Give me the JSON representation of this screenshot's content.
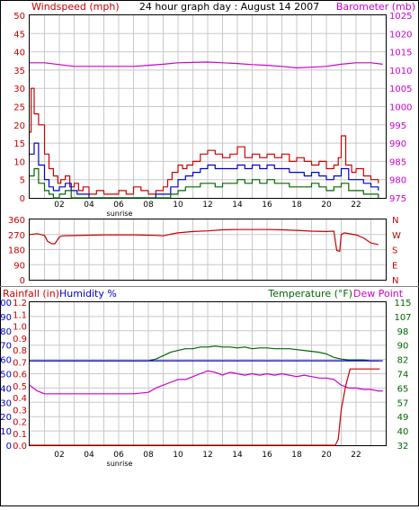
{
  "page": {
    "title": "24 hour graph day : August 14 2007"
  },
  "colors": {
    "red": "#cc0000",
    "blue": "#0000cc",
    "green": "#006600",
    "magenta": "#cc00cc",
    "axis_left_top": "#cc0000",
    "axis_left_bottom": "#0000cc",
    "grid": "#c8c8c8",
    "border": "#000000"
  },
  "chart_data": [
    {
      "id": "wind-baro",
      "type": "line",
      "title": "24 hour graph day : August 14 2007",
      "left_axis_label": "Windspeed (mph)",
      "right_axis_label": "Barometer (mb)",
      "x_ticks": [
        "02",
        "04",
        "06",
        "08",
        "10",
        "12",
        "14",
        "16",
        "18",
        "20",
        "22"
      ],
      "x_range": [
        0,
        24
      ],
      "x_annotation": "sunrise",
      "ylim_left": [
        0,
        50
      ],
      "ylim_right": [
        975,
        1025
      ],
      "y_ticks_left": [
        "0",
        "5",
        "10",
        "15",
        "20",
        "25",
        "30",
        "35",
        "40",
        "45",
        "50"
      ],
      "y_ticks_right": [
        "975",
        "980",
        "985",
        "990",
        "995",
        "1000",
        "1005",
        "1010",
        "1015",
        "1020",
        "1025"
      ],
      "series": [
        {
          "role": "gust",
          "color": "#cc0000",
          "axis": "left",
          "x": [
            0,
            0.1,
            0.3,
            0.6,
            1.0,
            1.3,
            1.6,
            1.9,
            2.1,
            2.4,
            2.7,
            3.0,
            3.3,
            3.6,
            4.0,
            4.5,
            5.0,
            5.5,
            6.0,
            6.5,
            7.0,
            7.5,
            8.0,
            8.5,
            9.0,
            9.3,
            9.6,
            10.0,
            10.3,
            10.6,
            11.0,
            11.5,
            12.0,
            12.5,
            13.0,
            13.5,
            14.0,
            14.5,
            15.0,
            15.5,
            16.0,
            16.5,
            17.0,
            17.5,
            18.0,
            18.5,
            19.0,
            19.5,
            20.0,
            20.5,
            20.8,
            21.0,
            21.3,
            21.7,
            22.0,
            22.5,
            23.0,
            23.5
          ],
          "y": [
            18,
            30,
            23,
            20,
            12,
            8,
            6,
            4,
            5,
            6,
            3,
            4,
            2,
            3,
            1,
            2,
            1,
            1,
            2,
            1,
            3,
            2,
            1,
            2,
            3,
            5,
            7,
            9,
            8,
            9,
            10,
            12,
            13,
            12,
            11,
            12,
            14,
            11,
            12,
            11,
            12,
            11,
            12,
            10,
            11,
            10,
            9,
            10,
            8,
            9,
            11,
            17,
            9,
            7,
            8,
            6,
            5,
            4
          ]
        },
        {
          "role": "average",
          "color": "#0000cc",
          "axis": "left",
          "x": [
            0,
            0.3,
            0.6,
            1.0,
            1.3,
            1.6,
            2.0,
            2.4,
            2.8,
            3.2,
            3.6,
            4.0,
            4.5,
            5.0,
            6.0,
            7.0,
            8.0,
            8.5,
            9.0,
            9.5,
            10.0,
            10.5,
            11.0,
            11.5,
            12.0,
            12.5,
            13.0,
            13.5,
            14.0,
            14.5,
            15.0,
            15.5,
            16.0,
            16.5,
            17.0,
            17.5,
            18.0,
            18.5,
            19.0,
            19.5,
            20.0,
            20.5,
            21.0,
            21.5,
            22.0,
            22.5,
            23.0,
            23.5
          ],
          "y": [
            12,
            15,
            9,
            5,
            3,
            2,
            3,
            4,
            2,
            1,
            1,
            0,
            0,
            0,
            0,
            0,
            0,
            1,
            1,
            3,
            5,
            6,
            7,
            8,
            9,
            8,
            8,
            8,
            9,
            8,
            9,
            8,
            9,
            8,
            8,
            7,
            7,
            6,
            7,
            6,
            5,
            6,
            8,
            5,
            5,
            4,
            3,
            2
          ]
        },
        {
          "role": "lull",
          "color": "#006600",
          "axis": "left",
          "x": [
            0,
            0.3,
            0.6,
            1.0,
            1.3,
            1.6,
            2.0,
            2.4,
            2.8,
            3.2,
            3.6,
            4.0,
            5.0,
            6.0,
            7.0,
            8.0,
            8.5,
            9.0,
            9.5,
            10.0,
            10.5,
            11.0,
            11.5,
            12.0,
            12.5,
            13.0,
            13.5,
            14.0,
            14.5,
            15.0,
            15.5,
            16.0,
            16.5,
            17.0,
            17.5,
            18.0,
            18.5,
            19.0,
            19.5,
            20.0,
            20.5,
            21.0,
            21.5,
            22.0,
            22.5,
            23.0,
            23.5
          ],
          "y": [
            6,
            8,
            4,
            2,
            1,
            0,
            1,
            2,
            0,
            0,
            0,
            0,
            0,
            0,
            0,
            0,
            0,
            0,
            1,
            2,
            3,
            3,
            4,
            4,
            3,
            4,
            4,
            5,
            4,
            5,
            4,
            5,
            4,
            4,
            3,
            3,
            3,
            4,
            3,
            2,
            3,
            4,
            2,
            2,
            1,
            1,
            0
          ]
        },
        {
          "role": "barometer",
          "color": "#cc00cc",
          "axis": "right",
          "x": [
            0,
            1,
            2,
            3,
            4,
            5,
            6,
            7,
            8,
            9,
            10,
            11,
            12,
            13,
            14,
            15,
            16,
            17,
            18,
            19,
            20,
            21,
            22,
            23,
            23.8
          ],
          "y": [
            1012,
            1012,
            1011.5,
            1011,
            1011,
            1011,
            1011,
            1011,
            1011.3,
            1011.6,
            1012,
            1012.1,
            1012.2,
            1012,
            1011.8,
            1011.5,
            1011.3,
            1011,
            1010.6,
            1010.8,
            1011,
            1011.6,
            1012,
            1012,
            1011.6
          ]
        }
      ]
    },
    {
      "id": "wind-direction",
      "type": "line",
      "x_ticks": [],
      "x_range": [
        0,
        24
      ],
      "ylim_left": [
        0,
        360
      ],
      "y_ticks_left": [
        "0",
        "90",
        "180",
        "270",
        "360"
      ],
      "y_ticks_right": [
        "N",
        "E",
        "S",
        "W",
        "N"
      ],
      "series": [
        {
          "role": "direction",
          "color": "#cc0000",
          "axis": "left",
          "x": [
            0,
            0.5,
            1.0,
            1.2,
            1.5,
            1.7,
            2.0,
            2.2,
            3.0,
            4.0,
            5.0,
            6.0,
            7.0,
            8.0,
            8.5,
            9.0,
            9.5,
            10.0,
            11.0,
            12.0,
            13.0,
            14.0,
            15.0,
            16.0,
            17.0,
            18.0,
            19.0,
            20.0,
            20.5,
            20.7,
            20.9,
            21.0,
            21.2,
            22.0,
            22.5,
            23.0,
            23.5
          ],
          "y": [
            270,
            275,
            265,
            230,
            215,
            215,
            255,
            262,
            264,
            266,
            268,
            268,
            268,
            266,
            265,
            262,
            272,
            280,
            288,
            292,
            298,
            300,
            300,
            300,
            298,
            295,
            290,
            288,
            290,
            175,
            170,
            270,
            280,
            268,
            250,
            220,
            210
          ]
        }
      ]
    },
    {
      "id": "temp-hum-rain",
      "type": "line",
      "left_axis_label_1": "Rainfall (in)",
      "left_axis_label_2": "Humidity %",
      "right_axis_label_1": "Temperature (°F)",
      "right_axis_label_2": "Dew Point",
      "x_ticks": [
        "02",
        "04",
        "06",
        "08",
        "10",
        "12",
        "14",
        "16",
        "18",
        "20",
        "22"
      ],
      "x_range": [
        0,
        24
      ],
      "x_annotation": "sunrise",
      "ylim_left_rain": [
        0,
        1.2
      ],
      "ylim_left_hum": [
        0,
        100
      ],
      "ylim_right_temp": [
        32,
        115
      ],
      "y_ticks_left_rain": [
        "0.0",
        "0.1",
        "0.2",
        "0.3",
        "0.4",
        "0.5",
        "0.6",
        "0.7",
        "0.8",
        "0.9",
        "1.0",
        "1.1",
        "1.2"
      ],
      "y_ticks_left_hum": [
        "0",
        "10",
        "20",
        "30",
        "40",
        "50",
        "60",
        "70",
        "80",
        "90",
        "100"
      ],
      "y_ticks_right_temp": [
        "32",
        "40",
        "49",
        "57",
        "65",
        "74",
        "82",
        "90",
        "98",
        "107",
        "115"
      ],
      "series": [
        {
          "role": "temperature",
          "color": "#006600",
          "axis": "right_temp",
          "x": [
            0,
            1,
            2,
            3,
            4,
            5,
            6,
            7,
            8,
            8.5,
            9.0,
            9.5,
            10.0,
            10.5,
            11.0,
            11.5,
            12.0,
            12.5,
            13.0,
            13.5,
            14.0,
            14.5,
            15.0,
            15.5,
            16.0,
            16.5,
            17.0,
            17.5,
            18.0,
            18.5,
            19.0,
            19.5,
            20.0,
            20.5,
            21.0,
            21.5,
            22.0,
            22.5,
            23.0,
            23.5
          ],
          "y": [
            81,
            81,
            81,
            81,
            81,
            81,
            81,
            81,
            81,
            82,
            84,
            86,
            87,
            88,
            88,
            89,
            89,
            89.5,
            89,
            89,
            88.5,
            89,
            88,
            88.5,
            88.5,
            88,
            88,
            88,
            87.5,
            87,
            86.5,
            86,
            85,
            83,
            82,
            81.5,
            81.5,
            81.5,
            81,
            81
          ]
        },
        {
          "role": "dew-point",
          "color": "#0000cc",
          "axis": "right_temp",
          "x": [
            0,
            1,
            2,
            3,
            4,
            5,
            6,
            7,
            8,
            9,
            10,
            11,
            12,
            13,
            14,
            15,
            16,
            17,
            18,
            19,
            20,
            21,
            22,
            23,
            23.8
          ],
          "y": [
            81,
            81,
            81,
            81,
            81,
            81,
            81,
            81,
            81,
            81,
            81,
            81,
            81,
            81,
            81,
            81,
            81,
            81,
            81,
            81,
            81,
            81,
            81,
            81,
            81
          ]
        },
        {
          "role": "humidity",
          "color": "#cc00cc",
          "axis": "left_hum",
          "x": [
            0,
            0.5,
            1.0,
            2.0,
            3.0,
            4.0,
            5.0,
            6.0,
            7.0,
            8.0,
            8.5,
            9.0,
            9.5,
            10.0,
            10.5,
            11.0,
            11.5,
            12.0,
            12.5,
            13.0,
            13.5,
            14.0,
            14.5,
            15.0,
            15.5,
            16.0,
            16.5,
            17.0,
            17.5,
            18.0,
            18.5,
            19.0,
            19.5,
            20.0,
            20.5,
            21.0,
            21.5,
            22.0,
            22.5,
            23.0,
            23.5,
            23.8
          ],
          "y": [
            42,
            38,
            36,
            36,
            36,
            36,
            36,
            36,
            36,
            37,
            40,
            42,
            44,
            46,
            46,
            48,
            50,
            52,
            51,
            49,
            51,
            50,
            49,
            50,
            49,
            50,
            49,
            50,
            49,
            48,
            49,
            48,
            47,
            47,
            46,
            42,
            40,
            40,
            39,
            39,
            38,
            38
          ]
        },
        {
          "role": "rainfall",
          "color": "#cc0000",
          "axis": "left_rain",
          "x": [
            0,
            1,
            2,
            3,
            4,
            5,
            6,
            7,
            8,
            9,
            10,
            11,
            12,
            13,
            14,
            15,
            16,
            17,
            18,
            19,
            20,
            20.6,
            20.8,
            21.0,
            21.3,
            21.6,
            22.0,
            22.5,
            23.0,
            23.6
          ],
          "y": [
            0,
            0,
            0,
            0,
            0,
            0,
            0,
            0,
            0,
            0,
            0,
            0,
            0,
            0,
            0,
            0,
            0,
            0,
            0,
            0,
            0,
            0,
            0.05,
            0.3,
            0.5,
            0.64,
            0.64,
            0.64,
            0.64,
            0.64
          ]
        }
      ]
    }
  ]
}
